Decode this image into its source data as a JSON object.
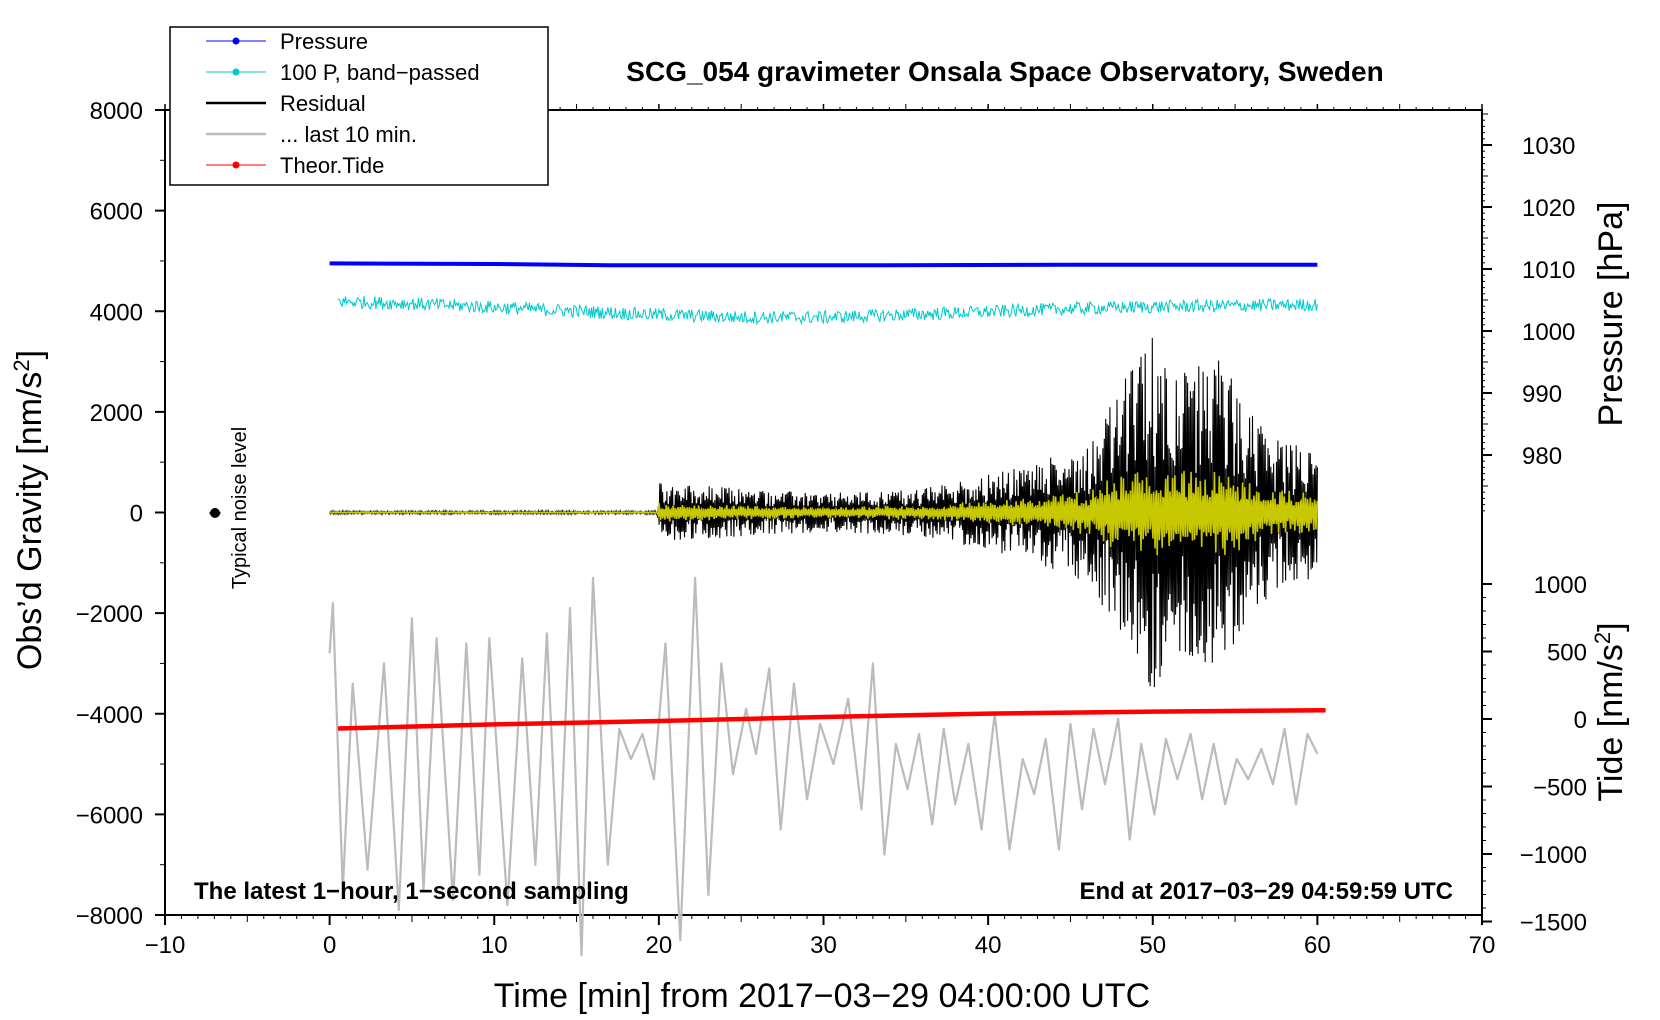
{
  "chart_data": {
    "type": "line",
    "title": "SCG_054 gravimeter Onsala Space Observatory, Sweden",
    "xlabel": "Time [min] from 2017−03−29 04:00:00 UTC",
    "ylabel_left": "Obs’d Gravity [nm/s",
    "ylabel_left_sup": "2",
    "ylabel_left_close": "]",
    "ylabel_right_pressure": "Pressure [hPa]",
    "ylabel_right_tide": "Tide [nm/s",
    "ylabel_right_tide_sup": "2",
    "ylabel_right_tide_close": "]",
    "xlim": [
      -10,
      70
    ],
    "ylim_left": [
      -8000,
      8000
    ],
    "x_ticks": [
      "−10",
      "0",
      "10",
      "20",
      "30",
      "40",
      "50",
      "60",
      "70"
    ],
    "y_left_ticks": [
      "8000",
      "6000",
      "4000",
      "2000",
      "0",
      "−2000",
      "−4000",
      "−6000",
      "−8000"
    ],
    "pressure_ticks": [
      "1030",
      "1020",
      "1010",
      "1000",
      "990",
      "980"
    ],
    "pressure_range": [
      970,
      1035
    ],
    "tide_ticks": [
      "1000",
      "500",
      "0",
      "−500",
      "−1000",
      "−1500"
    ],
    "tide_range": [
      -1500,
      1000
    ],
    "legend": [
      {
        "label": "Pressure",
        "color": "#0000ff",
        "marker": true
      },
      {
        "label": "100 P, band−passed",
        "color": "#00c8c8",
        "marker": true
      },
      {
        "label": "Residual",
        "color": "#000000",
        "marker": false
      },
      {
        "label": "... last 10 min.",
        "color": "#bbbbbb",
        "marker": false
      },
      {
        "label": "Theor.Tide",
        "color": "#ff0000",
        "marker": true
      }
    ],
    "noise_label": "Typical noise level",
    "noise_point": {
      "x": -7,
      "y": 0
    },
    "footer_left": "The latest 1−hour, 1−second sampling",
    "footer_right": "End at 2017−03−29 04:59:59 UTC",
    "series": [
      {
        "name": "Pressure",
        "axis": "pressure_hPa",
        "color": "#0000ff",
        "x": [
          0,
          10,
          17,
          30,
          34,
          45,
          60
        ],
        "values": [
          1010.9,
          1010.8,
          1010.6,
          1010.6,
          1010.6,
          1010.7,
          1010.7
        ]
      },
      {
        "name": "100 P, band-passed",
        "axis": "gravity_nm_s2",
        "color": "#00c8c8",
        "x": [
          0,
          5,
          10,
          15,
          20,
          25,
          30,
          35,
          40,
          45,
          50,
          55,
          60
        ],
        "values": [
          4200,
          4150,
          4080,
          4000,
          3930,
          3880,
          3880,
          3930,
          3990,
          4050,
          4090,
          4110,
          4130
        ]
      },
      {
        "name": "Residual",
        "axis": "gravity_nm_s2",
        "color": "#000000",
        "envelope_x": [
          0,
          19.9,
          20,
          30,
          36,
          42,
          46,
          48,
          50,
          52,
          54,
          56,
          58,
          60
        ],
        "envelope_amp": [
          30,
          30,
          600,
          380,
          480,
          900,
          1400,
          2500,
          3600,
          2800,
          3200,
          2000,
          1400,
          1300
        ]
      },
      {
        "name": "... last 10 min.",
        "axis": "gravity_nm_s2",
        "color": "#bbbbbb",
        "x": [
          0,
          0.2,
          0.8,
          1.4,
          2.3,
          3.3,
          4.2,
          5.0,
          5.7,
          6.5,
          7.5,
          8.3,
          9.1,
          9.7,
          10.8,
          11.7,
          12.5,
          13.2,
          13.9,
          14.6,
          15.3,
          16.0,
          16.9,
          17.6,
          18.3,
          19.0,
          19.7,
          20.4,
          21.3,
          22.2,
          23.0,
          23.8,
          24.5,
          25.3,
          25.9,
          26.7,
          27.4,
          28.2,
          29.0,
          29.8,
          30.6,
          31.5,
          32.3,
          33.0,
          33.7,
          34.4,
          35.1,
          35.8,
          36.6,
          37.3,
          38.0,
          38.8,
          39.6,
          40.4,
          41.3,
          42.1,
          42.8,
          43.5,
          44.3,
          45.0,
          45.7,
          46.4,
          47.1,
          47.9,
          48.6,
          49.3,
          50.1,
          50.8,
          51.5,
          52.3,
          53.0,
          53.7,
          54.4,
          55.1,
          55.8,
          56.6,
          57.3,
          58.0,
          58.7,
          59.4,
          60
        ],
        "values": [
          -2800,
          -1800,
          -7500,
          -3400,
          -7100,
          -3000,
          -7900,
          -2100,
          -7500,
          -2500,
          -7700,
          -2600,
          -7200,
          -2500,
          -7800,
          -2900,
          -7000,
          -2400,
          -7500,
          -1900,
          -8800,
          -1300,
          -7000,
          -4300,
          -4900,
          -4400,
          -5300,
          -2600,
          -8500,
          -1300,
          -7600,
          -3000,
          -5200,
          -3900,
          -4800,
          -3100,
          -6300,
          -3400,
          -5700,
          -4200,
          -5000,
          -3700,
          -5900,
          -3000,
          -6800,
          -4600,
          -5500,
          -4400,
          -6200,
          -4300,
          -5800,
          -4600,
          -6300,
          -4000,
          -6700,
          -4900,
          -5600,
          -4500,
          -6700,
          -4200,
          -5900,
          -4300,
          -5400,
          -4100,
          -6500,
          -4600,
          -6000,
          -4500,
          -5300,
          -4400,
          -5700,
          -4600,
          -5800,
          -4900,
          -5300,
          -4700,
          -5400,
          -4300,
          -5800,
          -4400,
          -4800
        ]
      },
      {
        "name": "Theor.Tide",
        "axis": "tide_nm_s2",
        "color": "#ff0000",
        "x": [
          0.5,
          10,
          20,
          30,
          40,
          50,
          60.5
        ],
        "values": [
          -70,
          -40,
          -15,
          15,
          40,
          55,
          65
        ]
      }
    ]
  }
}
